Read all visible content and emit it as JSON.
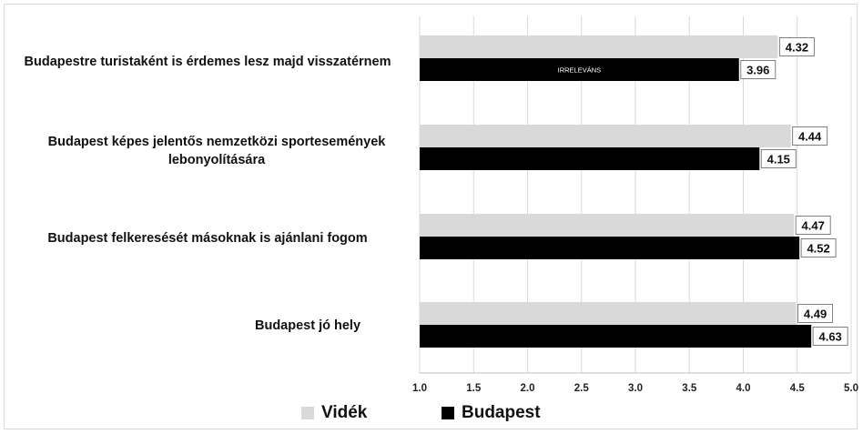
{
  "chart_data": {
    "type": "bar",
    "orientation": "horizontal",
    "categories": [
      "Budapestre turistaként is érdemes lesz majd visszatérnem",
      "Budapest képes jelentős nemzetközi sportesemények lebonyolítására",
      "Budapest felkeresését másoknak is ajánlani fogom",
      "Budapest jó hely"
    ],
    "series": [
      {
        "name": "Vidék",
        "values": [
          4.32,
          4.44,
          4.47,
          4.49
        ],
        "color": "#d9d9d9"
      },
      {
        "name": "Budapest",
        "values": [
          3.96,
          4.15,
          4.52,
          4.63
        ],
        "color": "#000000"
      }
    ],
    "data_labels": {
      "Vidék": [
        "4.32",
        "4.44",
        "4.47",
        "4.49"
      ],
      "Budapest": [
        "3.96",
        "4.15",
        "4.52",
        "4.63"
      ]
    },
    "annotation": {
      "text": "IRRELEVÁNS",
      "category_index": 0,
      "series": "Budapest"
    },
    "xlim": [
      1.0,
      5.0
    ],
    "xticks": [
      "1.0",
      "1.5",
      "2.0",
      "2.5",
      "3.0",
      "3.5",
      "4.0",
      "4.5",
      "5.0"
    ],
    "grid": true,
    "legend_position": "bottom-left"
  }
}
